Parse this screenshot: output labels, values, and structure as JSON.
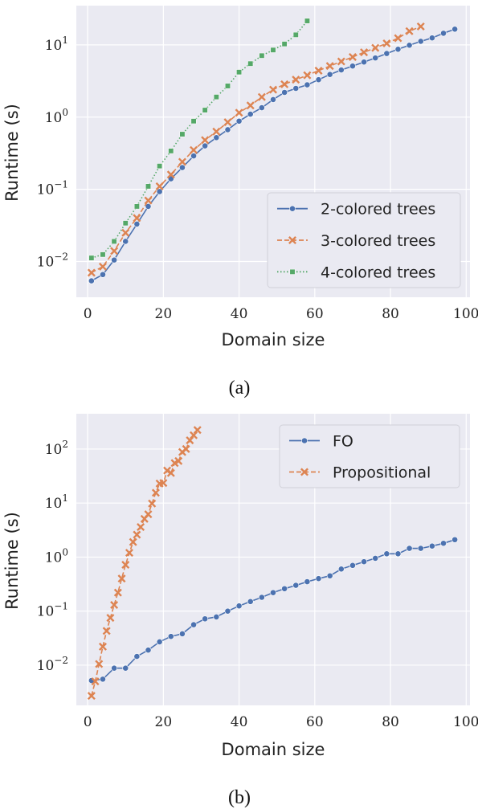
{
  "figures": [
    {
      "caption": "(a)",
      "chart_data": {
        "type": "line",
        "xlabel": "Domain size",
        "ylabel": "Runtime (s)",
        "yscale": "log",
        "xlim": [
          -3,
          101
        ],
        "ylim": [
          0.0032,
          35
        ],
        "xticks": [
          0,
          20,
          40,
          60,
          80,
          100
        ],
        "yticks": [
          0.01,
          0.1,
          1,
          10
        ],
        "ytick_exponents": [
          "−2",
          "−1",
          "0",
          "1"
        ],
        "grid": true,
        "legend": "lower-right",
        "series": [
          {
            "name": "2-colored trees",
            "color": "#4c72b0",
            "marker": "circle",
            "dash": "solid",
            "x": [
              1,
              4,
              7,
              10,
              13,
              16,
              19,
              22,
              25,
              28,
              31,
              34,
              37,
              40,
              43,
              46,
              49,
              52,
              55,
              58,
              61,
              64,
              67,
              70,
              73,
              76,
              79,
              82,
              85,
              88,
              91,
              94,
              97
            ],
            "y": [
              0.0054,
              0.0066,
              0.0105,
              0.019,
              0.033,
              0.058,
              0.093,
              0.14,
              0.2,
              0.29,
              0.4,
              0.52,
              0.67,
              0.88,
              1.1,
              1.35,
              1.75,
              2.2,
              2.5,
              2.8,
              3.3,
              3.9,
              4.5,
              5.1,
              5.8,
              6.6,
              7.6,
              8.7,
              9.9,
              11.2,
              12.5,
              14.5,
              16.5
            ]
          },
          {
            "name": "3-colored trees",
            "color": "#dd8452",
            "marker": "x",
            "dash": "dashed",
            "x": [
              1,
              4,
              7,
              10,
              13,
              16,
              19,
              22,
              25,
              28,
              31,
              34,
              37,
              40,
              43,
              46,
              49,
              52,
              55,
              58,
              61,
              64,
              67,
              70,
              73,
              76,
              79,
              82,
              85,
              88
            ],
            "y": [
              0.007,
              0.0085,
              0.014,
              0.025,
              0.04,
              0.07,
              0.11,
              0.16,
              0.24,
              0.35,
              0.48,
              0.63,
              0.85,
              1.15,
              1.45,
              1.9,
              2.4,
              2.85,
              3.3,
              3.8,
              4.4,
              5.1,
              5.9,
              6.8,
              7.9,
              9.1,
              10.5,
              12.4,
              15.5,
              18
            ]
          },
          {
            "name": "4-colored trees",
            "color": "#55a868",
            "marker": "square",
            "dash": "dotted",
            "x": [
              1,
              4,
              7,
              10,
              13,
              16,
              19,
              22,
              25,
              28,
              31,
              34,
              37,
              40,
              43,
              46,
              49,
              52,
              55,
              58
            ],
            "y": [
              0.0112,
              0.0125,
              0.019,
              0.034,
              0.058,
              0.11,
              0.21,
              0.34,
              0.58,
              0.88,
              1.25,
              1.9,
              2.7,
              4.2,
              5.5,
              7.1,
              8.5,
              10.3,
              13.8,
              21.5
            ]
          }
        ]
      }
    },
    {
      "caption": "(b)",
      "chart_data": {
        "type": "line",
        "xlabel": "Domain size",
        "ylabel": "Runtime (s)",
        "yscale": "log",
        "xlim": [
          -3,
          101
        ],
        "ylim": [
          0.0018,
          450
        ],
        "xticks": [
          0,
          20,
          40,
          60,
          80,
          100
        ],
        "yticks": [
          0.01,
          0.1,
          1,
          10,
          100
        ],
        "ytick_exponents": [
          "−2",
          "−1",
          "0",
          "1",
          "2"
        ],
        "grid": true,
        "legend": "top-right",
        "series": [
          {
            "name": "FO",
            "color": "#4c72b0",
            "marker": "circle",
            "dash": "solid",
            "x": [
              1,
              4,
              7,
              10,
              13,
              16,
              19,
              22,
              25,
              28,
              31,
              34,
              37,
              40,
              43,
              46,
              49,
              52,
              55,
              58,
              61,
              64,
              67,
              70,
              73,
              76,
              79,
              82,
              85,
              88,
              91,
              94,
              97
            ],
            "y": [
              0.0052,
              0.0055,
              0.0088,
              0.0088,
              0.0145,
              0.019,
              0.027,
              0.034,
              0.038,
              0.056,
              0.072,
              0.078,
              0.1,
              0.125,
              0.15,
              0.18,
              0.22,
              0.26,
              0.3,
              0.35,
              0.4,
              0.45,
              0.6,
              0.7,
              0.82,
              0.95,
              1.15,
              1.15,
              1.45,
              1.45,
              1.6,
              1.8,
              2.1
            ]
          },
          {
            "name": "Propositional",
            "color": "#dd8452",
            "marker": "x",
            "dash": "dashed",
            "x": [
              1,
              2,
              3,
              4,
              5,
              6,
              7,
              8,
              9,
              10,
              11,
              12,
              13,
              14,
              15,
              16,
              17,
              18,
              19,
              20,
              21,
              22,
              23,
              24,
              25,
              26,
              27,
              28,
              29
            ],
            "y": [
              0.0027,
              0.005,
              0.0105,
              0.022,
              0.043,
              0.075,
              0.13,
              0.22,
              0.4,
              0.72,
              1.2,
              1.9,
              2.6,
              3.6,
              5.1,
              6.2,
              9.8,
              15.5,
              23,
              23.5,
              40,
              36,
              55,
              60,
              88,
              100,
              145,
              180,
              225
            ]
          }
        ]
      }
    }
  ]
}
